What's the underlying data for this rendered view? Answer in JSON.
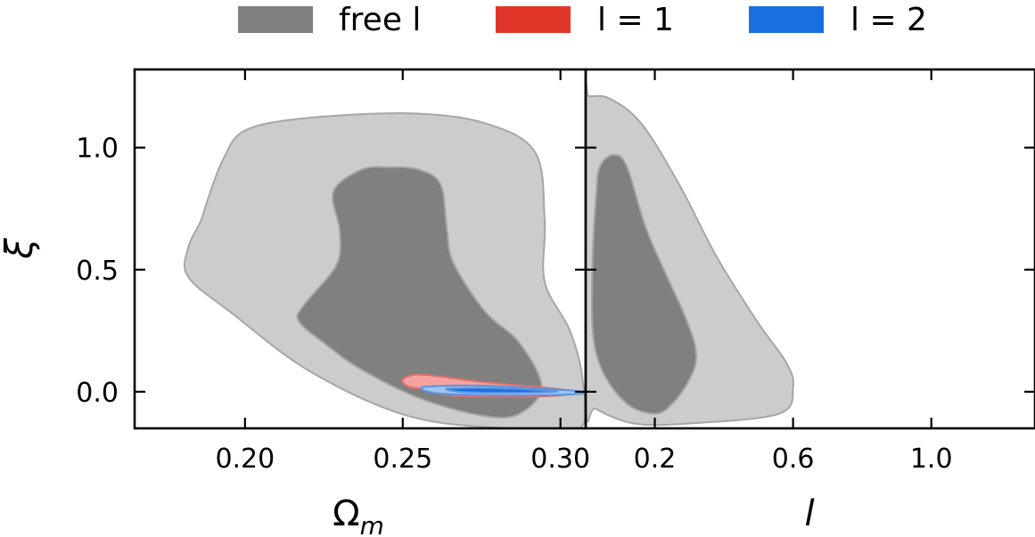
{
  "chart_data": {
    "type": "contour",
    "legend": {
      "placement": "top-center",
      "entries": [
        {
          "label": "free l",
          "color": "#808080"
        },
        {
          "label": "l = 1",
          "color": "#e0362a"
        },
        {
          "label": "l = 2",
          "color": "#1a6fe0"
        }
      ]
    },
    "ylabel": "ξ",
    "ylim": [
      -0.15,
      1.32
    ],
    "yticks": [
      0.0,
      0.5,
      1.0
    ],
    "ytick_labels": [
      "0.0",
      "0.5",
      "1.0"
    ],
    "panels": [
      {
        "xlabel": "Ω",
        "xlabel_sub": "m",
        "xlim": [
          0.165,
          0.308
        ],
        "xticks": [
          0.2,
          0.25,
          0.3
        ],
        "xtick_labels": [
          "0.20",
          "0.25",
          "0.30"
        ],
        "contours": [
          {
            "series": "free l",
            "level": "outer",
            "color": "#cccccc",
            "points": [
              [
                0.182,
                0.59
              ],
              [
                0.186,
                0.7
              ],
              [
                0.188,
                0.78
              ],
              [
                0.193,
                0.95
              ],
              [
                0.2,
                1.07
              ],
              [
                0.219,
                1.12
              ],
              [
                0.252,
                1.14
              ],
              [
                0.276,
                1.1
              ],
              [
                0.292,
                0.98
              ],
              [
                0.295,
                0.7
              ],
              [
                0.295,
                0.45
              ],
              [
                0.303,
                0.25
              ],
              [
                0.307,
                0.05
              ],
              [
                0.306,
                -0.15
              ],
              [
                0.283,
                -0.15
              ],
              [
                0.252,
                -0.1
              ],
              [
                0.221,
                0.08
              ],
              [
                0.196,
                0.32
              ],
              [
                0.182,
                0.47
              ]
            ]
          },
          {
            "series": "free l",
            "level": "inner",
            "color": "#808080",
            "points": [
              [
                0.228,
                0.82
              ],
              [
                0.237,
                0.91
              ],
              [
                0.246,
                0.92
              ],
              [
                0.255,
                0.91
              ],
              [
                0.262,
                0.85
              ],
              [
                0.264,
                0.67
              ],
              [
                0.266,
                0.53
              ],
              [
                0.276,
                0.33
              ],
              [
                0.287,
                0.2
              ],
              [
                0.294,
                0.02
              ],
              [
                0.287,
                -0.09
              ],
              [
                0.276,
                -0.1
              ],
              [
                0.256,
                -0.03
              ],
              [
                0.237,
                0.09
              ],
              [
                0.226,
                0.19
              ],
              [
                0.217,
                0.29
              ],
              [
                0.219,
                0.36
              ],
              [
                0.229,
                0.52
              ],
              [
                0.23,
                0.66
              ]
            ]
          },
          {
            "series": "l = 1",
            "level": "outer",
            "color": "#f4a3a0",
            "points": [
              [
                0.25,
                0.05
              ],
              [
                0.256,
                0.07
              ],
              [
                0.275,
                0.04
              ],
              [
                0.3,
                0.01
              ],
              [
                0.303,
                -0.01
              ],
              [
                0.29,
                -0.02
              ],
              [
                0.265,
                -0.015
              ],
              [
                0.257,
                0.01
              ],
              [
                0.252,
                0.02
              ]
            ]
          },
          {
            "series": "l = 1",
            "level": "inner",
            "color": "#e0362a",
            "points": [
              [
                0.258,
                0.01
              ],
              [
                0.27,
                0.02
              ],
              [
                0.29,
                0.01
              ],
              [
                0.298,
                0.0
              ],
              [
                0.288,
                -0.01
              ],
              [
                0.27,
                -0.005
              ]
            ]
          },
          {
            "series": "l = 2",
            "level": "outer",
            "color": "#9fc5ef",
            "points": [
              [
                0.257,
                0.02
              ],
              [
                0.275,
                0.025
              ],
              [
                0.298,
                0.01
              ],
              [
                0.307,
                0.0
              ],
              [
                0.305,
                -0.01
              ],
              [
                0.285,
                -0.015
              ],
              [
                0.265,
                -0.01
              ],
              [
                0.258,
                0.0
              ]
            ]
          },
          {
            "series": "l = 2",
            "level": "inner",
            "color": "#1a6fe0",
            "points": [
              [
                0.264,
                0.012
              ],
              [
                0.278,
                0.015
              ],
              [
                0.296,
                0.005
              ],
              [
                0.298,
                0.0
              ],
              [
                0.286,
                -0.004
              ],
              [
                0.27,
                -0.002
              ]
            ]
          }
        ]
      },
      {
        "xlabel": "l",
        "xlim": [
          0.0,
          1.3
        ],
        "xticks": [
          0.2,
          0.6,
          1.0
        ],
        "xtick_labels": [
          "0.2",
          "0.6",
          "1.0"
        ],
        "contours": [
          {
            "series": "free l",
            "level": "outer",
            "color": "#cccccc",
            "points": [
              [
                0.01,
                1.21
              ],
              [
                0.07,
                1.2
              ],
              [
                0.16,
                1.1
              ],
              [
                0.27,
                0.85
              ],
              [
                0.38,
                0.55
              ],
              [
                0.5,
                0.28
              ],
              [
                0.58,
                0.12
              ],
              [
                0.6,
                0.02
              ],
              [
                0.56,
                -0.09
              ],
              [
                0.3,
                -0.13
              ],
              [
                0.14,
                -0.13
              ],
              [
                0.03,
                -0.07
              ],
              [
                0.0,
                -0.02
              ],
              [
                0.0,
                1.2
              ]
            ]
          },
          {
            "series": "free l",
            "level": "inner",
            "color": "#808080",
            "points": [
              [
                0.04,
                0.92
              ],
              [
                0.08,
                0.97
              ],
              [
                0.12,
                0.92
              ],
              [
                0.18,
                0.65
              ],
              [
                0.29,
                0.3
              ],
              [
                0.32,
                0.15
              ],
              [
                0.3,
                0.05
              ],
              [
                0.25,
                -0.05
              ],
              [
                0.2,
                -0.09
              ],
              [
                0.12,
                -0.05
              ],
              [
                0.05,
                0.08
              ],
              [
                0.02,
                0.25
              ],
              [
                0.02,
                0.55
              ],
              [
                0.03,
                0.8
              ]
            ]
          }
        ]
      }
    ]
  }
}
